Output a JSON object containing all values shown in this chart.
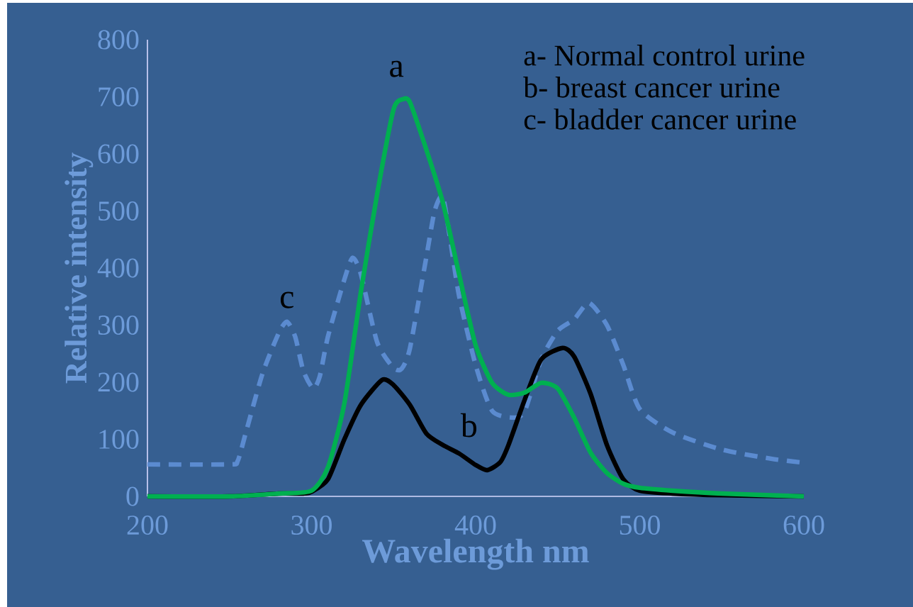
{
  "chart_data": {
    "type": "line",
    "xlabel": "Wavelength nm",
    "ylabel": "Relative intensity",
    "xlim": [
      200,
      600
    ],
    "ylim": [
      0,
      800
    ],
    "xticks": [
      200,
      300,
      400,
      500,
      600
    ],
    "yticks": [
      0,
      100,
      200,
      300,
      400,
      500,
      600,
      700,
      800
    ],
    "grid": false,
    "legend": false,
    "marker": "none",
    "annotations": [
      "a- Normal control urine",
      "b- breast cancer urine",
      "c- bladder cancer urine"
    ],
    "series": [
      {
        "name": "c",
        "color": "#5b8bd0",
        "line_style": "dashed",
        "x": [
          200,
          250,
          255,
          260,
          270,
          280,
          285,
          290,
          295,
          301,
          305,
          310,
          320,
          325,
          330,
          340,
          350,
          355,
          360,
          370,
          375,
          380,
          385,
          390,
          400,
          410,
          423,
          430,
          440,
          450,
          460,
          469,
          480,
          490,
          500,
          520,
          550,
          580,
          600
        ],
        "values": [
          56,
          56,
          62,
          112,
          214,
          286,
          306,
          280,
          220,
          189,
          210,
          280,
          380,
          418,
          390,
          270,
          225,
          224,
          260,
          420,
          500,
          525,
          440,
          350,
          230,
          150,
          138,
          150,
          240,
          290,
          310,
          339,
          300,
          230,
          153,
          112,
          82,
          66,
          59
        ]
      },
      {
        "name": "b",
        "color": "#000000",
        "line_style": "solid",
        "x": [
          200,
          250,
          280,
          295,
          300,
          310,
          320,
          330,
          343,
          350,
          360,
          370,
          380,
          390,
          400,
          407,
          415,
          420,
          430,
          440,
          453,
          460,
          470,
          480,
          490,
          500,
          520,
          550,
          600
        ],
        "values": [
          0,
          0,
          5,
          5,
          8,
          30,
          100,
          160,
          204,
          195,
          160,
          110,
          90,
          75,
          55,
          46,
          60,
          90,
          170,
          240,
          260,
          245,
          180,
          90,
          30,
          10,
          5,
          2,
          0
        ]
      },
      {
        "name": "a",
        "color": "#00b050",
        "line_style": "solid",
        "x": [
          200,
          250,
          280,
          300,
          310,
          320,
          330,
          340,
          350,
          356,
          360,
          370,
          380,
          390,
          400,
          410,
          420,
          430,
          440,
          450,
          460,
          470,
          480,
          490,
          500,
          520,
          550,
          600
        ],
        "values": [
          0,
          0,
          5,
          10,
          51,
          163,
          357,
          530,
          678,
          696,
          690,
          607,
          515,
          388,
          265,
          199,
          178,
          182,
          199,
          189,
          138,
          77,
          41,
          22,
          15,
          10,
          5,
          0
        ]
      }
    ]
  }
}
